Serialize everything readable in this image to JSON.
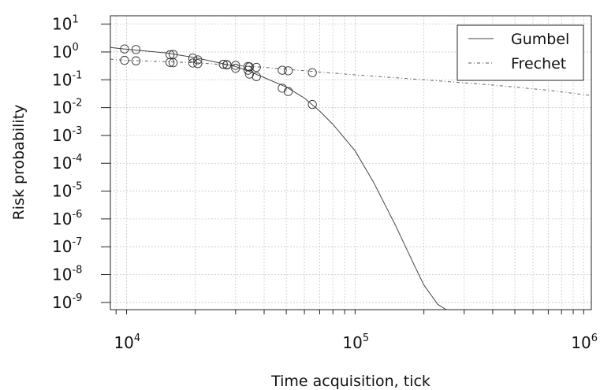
{
  "chart_data": {
    "type": "scatter",
    "title": "",
    "xlabel": "Time acquisition, tick",
    "ylabel": "Risk probability",
    "x_scale": "log",
    "y_scale": "log",
    "xlim": [
      8500,
      1080000
    ],
    "ylim": [
      5.5e-10,
      20
    ],
    "x_ticks": [
      {
        "value": 10000,
        "base": "10",
        "exp": "4"
      },
      {
        "value": 100000,
        "base": "10",
        "exp": "5"
      },
      {
        "value": 1000000,
        "base": "10",
        "exp": "6"
      }
    ],
    "y_ticks": [
      {
        "value": 10,
        "base": "10",
        "exp": "1"
      },
      {
        "value": 1,
        "base": "10",
        "exp": "0"
      },
      {
        "value": 0.1,
        "base": "10",
        "exp": "-1"
      },
      {
        "value": 0.01,
        "base": "10",
        "exp": "-2"
      },
      {
        "value": 0.001,
        "base": "10",
        "exp": "-3"
      },
      {
        "value": 0.0001,
        "base": "10",
        "exp": "-4"
      },
      {
        "value": 1e-05,
        "base": "10",
        "exp": "-5"
      },
      {
        "value": 1e-06,
        "base": "10",
        "exp": "-6"
      },
      {
        "value": 1e-07,
        "base": "10",
        "exp": "-7"
      },
      {
        "value": 1e-08,
        "base": "10",
        "exp": "-8"
      },
      {
        "value": 1e-09,
        "base": "10",
        "exp": "-9"
      }
    ],
    "grid": true,
    "legend_position": "top-right",
    "series": [
      {
        "name": "Gumbel",
        "line_style": "solid",
        "color": "#444444",
        "curve": [
          [
            8500,
            1.45
          ],
          [
            10000,
            1.25
          ],
          [
            15000,
            0.92
          ],
          [
            20000,
            0.62
          ],
          [
            25000,
            0.42
          ],
          [
            30000,
            0.3
          ],
          [
            35000,
            0.19
          ],
          [
            40000,
            0.12
          ],
          [
            50000,
            0.055
          ],
          [
            60000,
            0.022
          ],
          [
            70000,
            0.0075
          ],
          [
            80000,
            0.0025
          ],
          [
            100000,
            0.00028
          ],
          [
            120000,
            2.2e-05
          ],
          [
            150000,
            6e-07
          ],
          [
            180000,
            2.5e-08
          ],
          [
            200000,
            4.2e-09
          ],
          [
            230000,
            8.5e-10
          ],
          [
            260000,
            4.5e-10
          ]
        ],
        "points": [
          [
            9800,
            1.28
          ],
          [
            11000,
            1.22
          ],
          [
            15500,
            0.8
          ],
          [
            16000,
            0.82
          ],
          [
            19500,
            0.6
          ],
          [
            20500,
            0.52
          ],
          [
            26500,
            0.36
          ],
          [
            27500,
            0.34
          ],
          [
            30000,
            0.26
          ],
          [
            34000,
            0.22
          ],
          [
            34500,
            0.16
          ],
          [
            37000,
            0.13
          ],
          [
            48000,
            0.05
          ],
          [
            51000,
            0.038
          ],
          [
            65000,
            0.013
          ]
        ]
      },
      {
        "name": "Frechet",
        "line_style": "dotdash",
        "color": "#666666",
        "curve": [
          [
            8500,
            0.55
          ],
          [
            10000,
            0.5
          ],
          [
            20000,
            0.41
          ],
          [
            40000,
            0.28
          ],
          [
            70000,
            0.19
          ],
          [
            100000,
            0.15
          ],
          [
            200000,
            0.1
          ],
          [
            400000,
            0.065
          ],
          [
            700000,
            0.042
          ],
          [
            1080000,
            0.027
          ]
        ],
        "points": [
          [
            9800,
            0.5
          ],
          [
            11000,
            0.48
          ],
          [
            15500,
            0.42
          ],
          [
            16000,
            0.41
          ],
          [
            19500,
            0.4
          ],
          [
            20500,
            0.38
          ],
          [
            26500,
            0.36
          ],
          [
            27500,
            0.35
          ],
          [
            30000,
            0.33
          ],
          [
            34000,
            0.3
          ],
          [
            34500,
            0.29
          ],
          [
            37000,
            0.28
          ],
          [
            48000,
            0.22
          ],
          [
            51000,
            0.21
          ],
          [
            65000,
            0.18
          ]
        ]
      }
    ]
  }
}
